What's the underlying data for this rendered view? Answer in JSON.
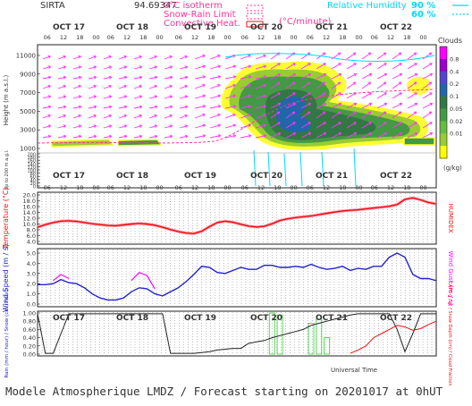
{
  "header": {
    "station": "SIRTA",
    "code": "94.69347",
    "legend_isotherm": "0°C isotherm",
    "legend_snowrain": "Snow-Rain Limit",
    "legend_convective": "Convective Heat.",
    "legend_convective_unit": "(°C/minute)",
    "legend_rh": "Relative Humidity",
    "legend_rh_90": "90 %",
    "legend_rh_60": "60 %"
  },
  "colors": {
    "magenta": "#ff00ff",
    "pink": "#ff3399",
    "cyan": "#00d8ff",
    "red": "#ee1111",
    "blue": "#2222cc",
    "green": "#55dd55",
    "dark_text": "#333333"
  },
  "time_axis": {
    "days": [
      "OCT 17",
      "OCT 18",
      "OCT 19",
      "OCT 20",
      "OCT 21",
      "OCT 22"
    ],
    "hours": [
      "06",
      "12",
      "18",
      "00"
    ],
    "xlabel": "Universal Time"
  },
  "chart_data": [
    {
      "type": "heatmap",
      "panel": "clouds",
      "ylabel": "Height (m a.s.l.)",
      "ylabel_low": "Up to 200 m a.g.l.",
      "yticks_upper": [
        "11000",
        "9000",
        "7000",
        "5000",
        "3000",
        "1000"
      ],
      "yticks_lower": [
        "200",
        "180",
        "160",
        "140",
        "120",
        "100",
        "80",
        "60",
        "40",
        "20",
        "0"
      ],
      "colorbar_title": "Clouds",
      "colorbar_unit": "(g/kg)",
      "colorbar_ticks": [
        "0.8",
        "0.4",
        "0.2",
        "0.1",
        "0.05",
        "0.02",
        "0.01"
      ],
      "colorbar_colors": [
        "#ff00ff",
        "#9900cc",
        "#5544cc",
        "#2266aa",
        "#337744",
        "#449944",
        "#66bb44",
        "#99cc33",
        "#ffff00"
      ]
    },
    {
      "type": "line",
      "panel": "temperature",
      "ylabel": "Temperature (°C)",
      "ylabel_right": "HUMIDEX",
      "yticks": [
        "20.0",
        "18.0",
        "16.0",
        "14.0",
        "12.0",
        "10.0",
        "8.0",
        "6.0",
        "4.0"
      ],
      "ylim": [
        4,
        20
      ],
      "series": [
        {
          "name": "Temperature",
          "color": "#ee1111",
          "values": [
            8.9,
            9.8,
            10.5,
            11.0,
            11.1,
            10.9,
            10.5,
            10.1,
            9.8,
            9.5,
            9.4,
            9.7,
            10.0,
            10.2,
            10.0,
            9.6,
            8.9,
            8.1,
            7.4,
            6.9,
            6.7,
            7.5,
            9.1,
            10.5,
            11.0,
            10.6,
            9.9,
            9.3,
            9.0,
            9.2,
            10.1,
            11.2,
            11.8,
            12.2,
            12.5,
            12.8,
            13.2,
            13.7,
            14.1,
            14.5,
            14.7,
            14.9,
            15.2,
            15.5,
            15.8,
            16.1,
            16.7,
            18.5,
            19.0,
            18.3,
            17.4,
            16.9
          ]
        }
      ]
    },
    {
      "type": "line",
      "panel": "wind",
      "ylabel": "Wind Speed (m / s)",
      "ylabel_right": "Wind Gust (m / s)",
      "yticks": [
        "5.0",
        "4.0",
        "3.0",
        "2.0",
        "1.0",
        "0.0"
      ],
      "ylim": [
        0,
        5
      ],
      "series": [
        {
          "name": "Wind Speed",
          "color": "#2222cc",
          "values": [
            1.9,
            1.9,
            2.0,
            2.4,
            2.1,
            2.0,
            1.6,
            1.0,
            0.6,
            0.4,
            0.4,
            0.6,
            1.2,
            1.6,
            1.5,
            1.0,
            0.8,
            1.2,
            1.6,
            2.2,
            2.9,
            3.7,
            3.6,
            3.1,
            3.0,
            3.3,
            3.6,
            3.4,
            3.4,
            3.8,
            3.8,
            3.6,
            3.6,
            3.7,
            3.6,
            3.9,
            3.6,
            3.4,
            3.5,
            3.7,
            3.3,
            3.5,
            3.4,
            3.7,
            3.7,
            4.6,
            5.0,
            4.6,
            2.9,
            2.5,
            2.5,
            2.3
          ]
        },
        {
          "name": "Wind Gust",
          "color": "#ff00ff",
          "values": [
            null,
            null,
            2.3,
            2.9,
            2.5,
            null,
            null,
            null,
            null,
            null,
            null,
            null,
            2.3,
            3.1,
            2.8,
            1.5,
            null,
            null,
            null,
            null,
            null,
            null,
            null,
            null,
            null,
            null,
            null,
            null,
            null,
            null,
            null,
            null,
            null,
            null,
            null,
            null,
            null,
            null,
            null,
            null,
            null,
            null,
            null,
            null,
            null,
            null,
            null,
            null,
            null,
            null,
            null,
            null
          ]
        }
      ]
    },
    {
      "type": "line",
      "panel": "precipitation",
      "ylabel": "Rain (mm / hour) / Snow (cm / hour)",
      "ylabel_right": "CAPE (J / g) / Snow Depth (cm) / Cloud Fraction",
      "yticks": [
        "1.00",
        "0.80",
        "0.60",
        "0.40",
        "0.20",
        "0.00"
      ],
      "ylim": [
        0,
        1
      ],
      "series": [
        {
          "name": "Cloud Fraction",
          "color": "#222222",
          "values": [
            0.98,
            0.02,
            0.02,
            0.5,
            0.98,
            0.98,
            0.98,
            0.98,
            0.98,
            0.98,
            0.98,
            0.98,
            0.98,
            0.98,
            0.98,
            0.98,
            0.98,
            0.02,
            0.02,
            0.02,
            0.02,
            0.04,
            0.06,
            0.1,
            0.12,
            0.14,
            0.14,
            0.26,
            0.3,
            0.33,
            0.4,
            0.45,
            0.5,
            0.55,
            0.6,
            0.7,
            0.75,
            0.8,
            0.85,
            0.9,
            0.95,
            0.98,
            0.98,
            0.98,
            0.98,
            0.98,
            0.6,
            0.06,
            0.5,
            0.98,
            0.98,
            0.98
          ]
        },
        {
          "name": "CAPE",
          "color": "#ee1111",
          "values": [
            null,
            null,
            null,
            null,
            null,
            null,
            null,
            null,
            null,
            null,
            null,
            null,
            null,
            null,
            null,
            null,
            null,
            null,
            null,
            null,
            null,
            null,
            null,
            null,
            null,
            null,
            null,
            null,
            null,
            null,
            null,
            null,
            null,
            null,
            null,
            null,
            null,
            null,
            null,
            null,
            0.02,
            0.1,
            0.2,
            0.4,
            0.5,
            0.6,
            0.7,
            0.66,
            0.58,
            0.62,
            0.72,
            0.8
          ]
        }
      ],
      "bars": {
        "name": "Rain",
        "color": "#55dd55",
        "values": [
          0,
          0,
          0,
          0,
          0,
          0,
          0,
          0,
          0,
          0,
          0,
          0,
          0,
          0,
          0,
          0,
          0,
          0,
          0,
          0,
          0,
          0,
          0,
          0,
          0,
          0,
          0,
          0,
          0,
          0,
          1.0,
          0.95,
          0,
          0,
          0,
          0.75,
          0.85,
          0.4,
          0,
          0,
          0,
          0,
          0,
          0,
          0,
          0,
          0,
          0,
          0,
          0,
          0,
          0
        ]
      }
    }
  ],
  "footer": {
    "text": "Modele Atmospherique LMDZ / Forecast starting on 20201017 at 0hUT"
  }
}
